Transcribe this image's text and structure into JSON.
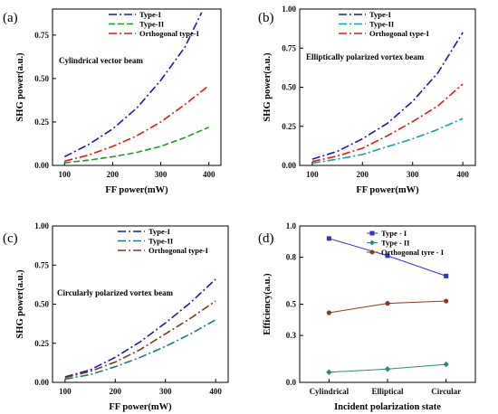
{
  "chart_data": [
    {
      "panel": "(a)",
      "type": "line",
      "annotation": "Cylindrical vector beam",
      "xlabel": "FF power(mW)",
      "ylabel": "SHG power(a.u.)",
      "xlim": [
        75,
        425
      ],
      "ylim": [
        0,
        0.9
      ],
      "xticks": [
        100,
        200,
        300,
        400
      ],
      "yticks": [
        0.0,
        0.25,
        0.5,
        0.75
      ],
      "ytick_labels": [
        "0.00",
        "0.25",
        "0.50",
        "0.75"
      ],
      "legend": "top-right",
      "series": [
        {
          "name": "Type-I",
          "color": "#1a1aa8",
          "dash": "dashdot",
          "x": [
            100,
            150,
            200,
            250,
            300,
            350,
            385
          ],
          "y": [
            0.05,
            0.12,
            0.21,
            0.33,
            0.49,
            0.68,
            0.88
          ]
        },
        {
          "name": "Type-II",
          "color": "#1f9a1f",
          "dash": "dash",
          "x": [
            100,
            150,
            200,
            250,
            300,
            350,
            400
          ],
          "y": [
            0.015,
            0.03,
            0.05,
            0.075,
            0.11,
            0.16,
            0.22
          ]
        },
        {
          "name": "Orthogonal type-I",
          "color": "#dd1a1a",
          "dash": "dashdot",
          "x": [
            100,
            150,
            200,
            250,
            300,
            350,
            400
          ],
          "y": [
            0.025,
            0.06,
            0.11,
            0.17,
            0.25,
            0.35,
            0.46
          ]
        }
      ]
    },
    {
      "panel": "(b)",
      "type": "line",
      "annotation": "Elliptically polarized vortex beam",
      "xlabel": "FF power(mW)",
      "ylabel": "SHG power(a.u.)",
      "xlim": [
        75,
        425
      ],
      "ylim": [
        0,
        1.0
      ],
      "xticks": [
        100,
        200,
        300,
        400
      ],
      "yticks": [
        0.0,
        0.25,
        0.5,
        0.75,
        1.0
      ],
      "ytick_labels": [
        "0.00",
        "0.25",
        "0.50",
        "0.75",
        "1.00"
      ],
      "legend": "top-left",
      "series": [
        {
          "name": "Type-I",
          "color": "#1a1aa8",
          "dash": "dashdot",
          "x": [
            100,
            150,
            200,
            250,
            300,
            350,
            400
          ],
          "y": [
            0.04,
            0.09,
            0.17,
            0.27,
            0.41,
            0.59,
            0.85
          ]
        },
        {
          "name": "Type-II",
          "color": "#10a0a0",
          "dash": "dashdot",
          "x": [
            100,
            150,
            200,
            250,
            300,
            350,
            400
          ],
          "y": [
            0.015,
            0.04,
            0.07,
            0.12,
            0.17,
            0.23,
            0.3
          ]
        },
        {
          "name": "Orthogonal type-I",
          "color": "#dd1a1a",
          "dash": "dashdot",
          "x": [
            100,
            150,
            200,
            250,
            300,
            350,
            400
          ],
          "y": [
            0.025,
            0.06,
            0.11,
            0.19,
            0.28,
            0.38,
            0.52
          ]
        }
      ]
    },
    {
      "panel": "(c)",
      "type": "line",
      "annotation": "Circularly polarized vortex beam",
      "xlabel": "FF power(mW)",
      "ylabel": "SHG power(a.u.)",
      "xlim": [
        75,
        425
      ],
      "ylim": [
        0,
        1.0
      ],
      "xticks": [
        100,
        200,
        300,
        400
      ],
      "yticks": [
        0.0,
        0.25,
        0.5,
        0.75,
        1.0
      ],
      "ytick_labels": [
        "0.00",
        "0.25",
        "0.50",
        "0.75",
        "1.00"
      ],
      "legend": "top-center",
      "series": [
        {
          "name": "Type-I",
          "color": "#1a1aa8",
          "dash": "dashdot",
          "x": [
            100,
            150,
            200,
            250,
            300,
            350,
            400
          ],
          "y": [
            0.035,
            0.08,
            0.16,
            0.26,
            0.38,
            0.51,
            0.66
          ]
        },
        {
          "name": "Type-II",
          "color": "#1a7a7a",
          "dash": "dashdot",
          "x": [
            100,
            150,
            200,
            250,
            300,
            350,
            400
          ],
          "y": [
            0.02,
            0.05,
            0.1,
            0.16,
            0.23,
            0.31,
            0.4
          ]
        },
        {
          "name": "Orthogonal type-I",
          "color": "#7a3a1a",
          "dash": "dashdot",
          "x": [
            100,
            150,
            200,
            250,
            300,
            350,
            400
          ],
          "y": [
            0.03,
            0.07,
            0.13,
            0.21,
            0.31,
            0.41,
            0.52
          ]
        }
      ]
    },
    {
      "panel": "(d)",
      "type": "line",
      "xlabel": "Incident polarization state",
      "ylabel": "Efficiency(a.u.)",
      "categories": [
        "Cylindrical",
        "Elliptical",
        "Circular"
      ],
      "ylim": [
        0,
        1.0
      ],
      "yticks": [
        0.0,
        0.3,
        0.5,
        0.8,
        1.0
      ],
      "ytick_labels": [
        "0.0",
        "0.3",
        "0.5",
        "0.8",
        "1.0"
      ],
      "legend": "top-right",
      "series": [
        {
          "name": "Type - I",
          "color": "#3333cc",
          "marker": "square",
          "values": [
            0.92,
            0.81,
            0.68
          ]
        },
        {
          "name": "Type - II",
          "color": "#2a8a7a",
          "marker": "diamond",
          "values": [
            0.065,
            0.085,
            0.115
          ]
        },
        {
          "name": "Orthogonal tyre - I",
          "color": "#8a3a1a",
          "marker": "circle",
          "values": [
            0.445,
            0.505,
            0.52
          ]
        }
      ]
    }
  ]
}
